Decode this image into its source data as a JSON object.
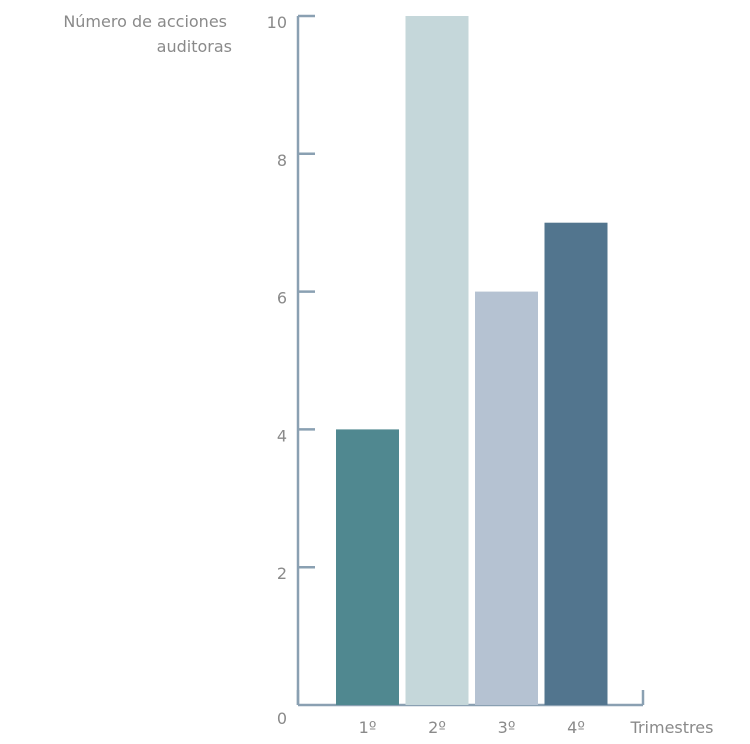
{
  "chart_data": {
    "type": "bar",
    "categories": [
      "1º",
      "2º",
      "3º",
      "4º"
    ],
    "values": [
      4,
      10,
      6,
      7
    ],
    "title": "",
    "xlabel": "Trimestres",
    "ylabel_lines": [
      "Número de acciones",
      "auditoras"
    ],
    "ylim": [
      0,
      10
    ],
    "yticks": [
      "0",
      "2",
      "4",
      "6",
      "8",
      "10"
    ],
    "grid": false,
    "bar_colors": [
      "#508890",
      "#c5d7da",
      "#b5c2d2",
      "#52758e"
    ],
    "axis_color": "#8aa0b2"
  }
}
